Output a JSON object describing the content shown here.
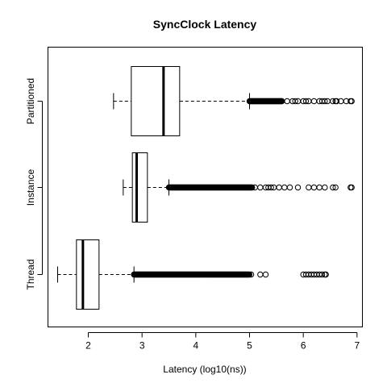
{
  "chart_data": {
    "type": "boxplot",
    "orientation": "horizontal",
    "title": "SyncClock Latency",
    "xlabel": "Latency (log10(ns))",
    "ylabel": "",
    "xlim": [
      1.25,
      7.1
    ],
    "xticks": [
      {
        "value": 2,
        "label": "2"
      },
      {
        "value": 3,
        "label": "3"
      },
      {
        "value": 4,
        "label": "4"
      },
      {
        "value": 5,
        "label": "5"
      },
      {
        "value": 6,
        "label": "6"
      },
      {
        "value": 7,
        "label": "7"
      }
    ],
    "grid": false,
    "legend": "none",
    "categories": [
      "Thread",
      "Instance",
      "Partitioned"
    ],
    "series": [
      {
        "category": "Thread",
        "whisker_low": 1.43,
        "q1": 1.78,
        "median": 1.9,
        "q3": 2.2,
        "whisker_high": 2.85,
        "outlier_dense_range": [
          2.85,
          5.0
        ],
        "outliers": [
          5.03,
          5.2,
          5.3,
          6.0,
          6.05,
          6.1,
          6.15,
          6.2,
          6.25,
          6.3,
          6.35,
          6.4,
          6.42
        ]
      },
      {
        "category": "Instance",
        "whisker_low": 2.65,
        "q1": 2.82,
        "median": 2.9,
        "q3": 3.1,
        "whisker_high": 3.5,
        "outlier_dense_range": [
          3.5,
          5.05
        ],
        "outliers": [
          5.1,
          5.2,
          5.3,
          5.35,
          5.4,
          5.45,
          5.55,
          5.65,
          5.75,
          5.9,
          6.1,
          6.2,
          6.3,
          6.4,
          6.55,
          6.6,
          6.88,
          6.9
        ]
      },
      {
        "category": "Partitioned",
        "whisker_low": 2.47,
        "q1": 2.8,
        "median": 3.4,
        "q3": 3.7,
        "whisker_high": 5.0,
        "outlier_dense_range": [
          5.0,
          5.6
        ],
        "outliers": [
          5.6,
          5.7,
          5.8,
          5.85,
          5.9,
          6.0,
          6.05,
          6.1,
          6.2,
          6.3,
          6.35,
          6.4,
          6.45,
          6.55,
          6.6,
          6.62,
          6.7,
          6.8,
          6.88,
          6.9
        ]
      }
    ]
  }
}
